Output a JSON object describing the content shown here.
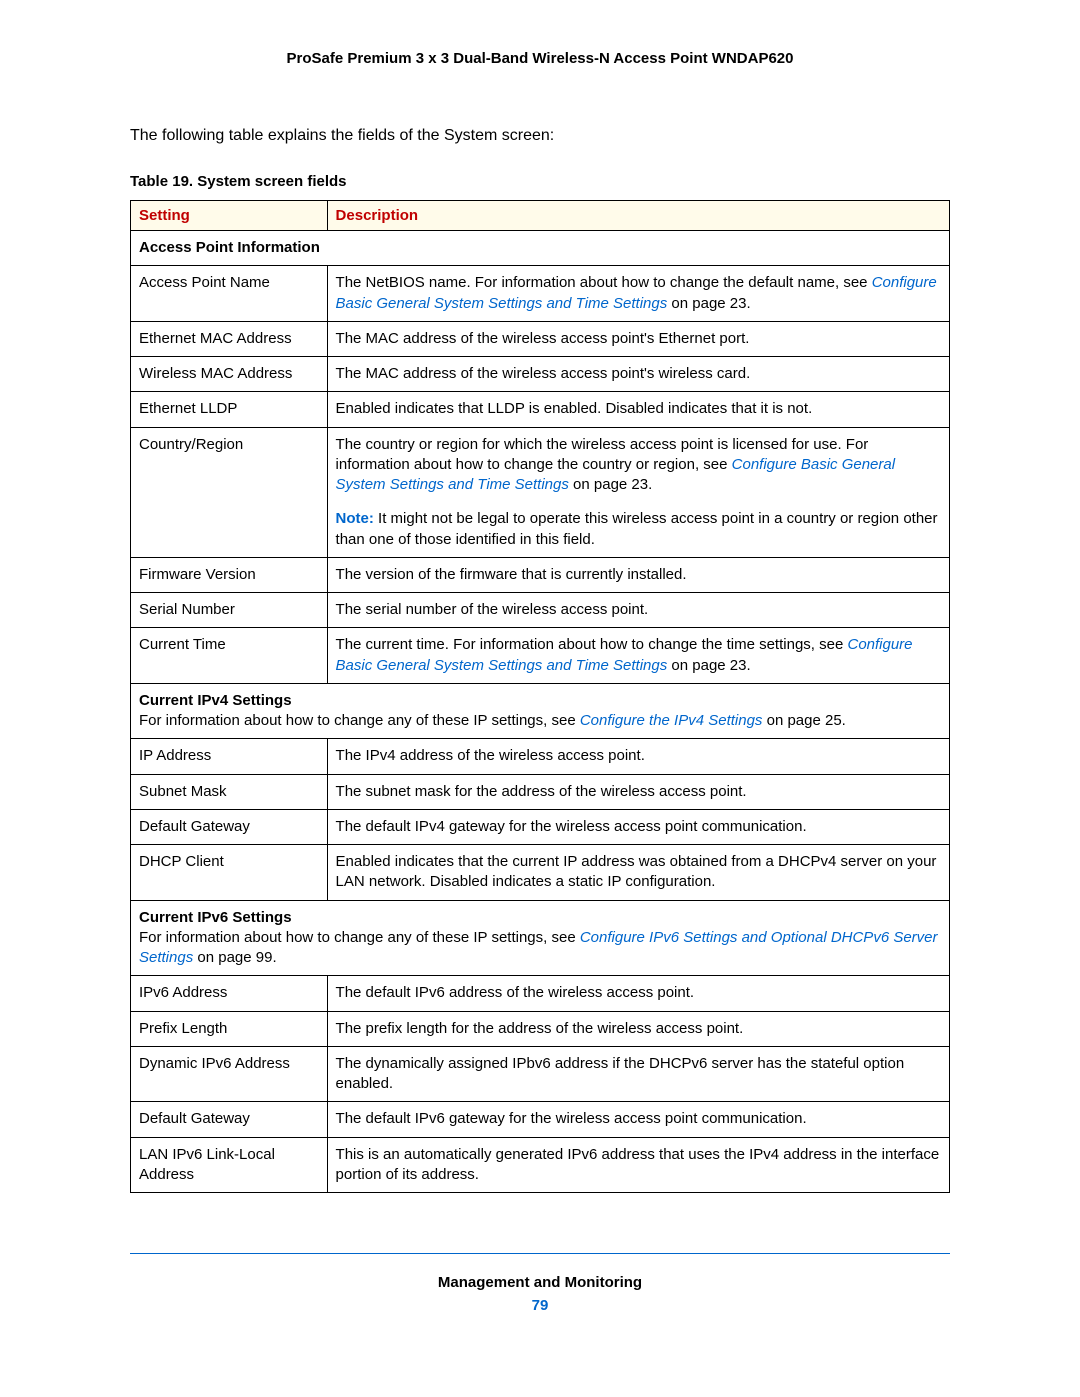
{
  "doc_title": "ProSafe Premium 3 x 3 Dual-Band Wireless-N Access Point WNDAP620",
  "intro": "The following table explains the fields of the System screen:",
  "table_caption": "Table 19.  System screen fields",
  "headers": {
    "setting": "Setting",
    "description": "Description"
  },
  "sections": {
    "api": {
      "title": "Access Point Information",
      "rows": {
        "ap_name": {
          "setting": "Access Point Name",
          "pre": "The NetBIOS name. For information about how to change the default name, see ",
          "link": "Configure Basic General System Settings and Time Settings",
          "post": " on page 23."
        },
        "eth_mac": {
          "setting": "Ethernet MAC Address",
          "desc": "The MAC address of the wireless access point's Ethernet port."
        },
        "wl_mac": {
          "setting": "Wireless MAC Address",
          "desc": "The MAC address of the wireless access point's wireless card."
        },
        "lldp": {
          "setting": "Ethernet LLDP",
          "desc": "Enabled indicates that LLDP is enabled. Disabled indicates that it is not."
        },
        "country": {
          "setting": "Country/Region",
          "pre": "The country or region for which the wireless access point is licensed for use. For information about how to change the country or region, see ",
          "link": "Configure Basic General System Settings and Time Settings",
          "post": " on page 23.",
          "note_label": "Note:",
          "note_text": "  It might not be legal to operate this wireless access point in a country or region other than one of those identified in this field."
        },
        "fw": {
          "setting": "Firmware Version",
          "desc": "The version of the firmware that is currently installed."
        },
        "serial": {
          "setting": "Serial Number",
          "desc": "The serial number of the wireless access point."
        },
        "time": {
          "setting": "Current Time",
          "pre": "The current time. For information about how to change the time settings, see ",
          "link": "Configure Basic General System Settings and Time Settings",
          "post": " on page 23."
        }
      }
    },
    "ipv4": {
      "title": "Current IPv4 Settings",
      "sub_pre": "For information about how to change any of these IP settings, see ",
      "sub_link": "Configure the IPv4 Settings",
      "sub_post": " on page 25.",
      "rows": {
        "ip": {
          "setting": "IP Address",
          "desc": "The IPv4 address of the wireless access point."
        },
        "mask": {
          "setting": "Subnet Mask",
          "desc": "The subnet mask for the address of the wireless access point."
        },
        "gw": {
          "setting": "Default Gateway",
          "desc": "The default IPv4 gateway for the wireless access point communication."
        },
        "dhcp": {
          "setting": "DHCP Client",
          "desc": "Enabled indicates that the current IP address was obtained from a DHCPv4 server on your LAN network. Disabled indicates a static IP configuration."
        }
      }
    },
    "ipv6": {
      "title": "Current IPv6 Settings",
      "sub_pre": "For information about how to change any of these IP settings, see ",
      "sub_link": "Configure IPv6 Settings and Optional DHCPv6 Server Settings",
      "sub_post": " on page 99.",
      "rows": {
        "addr": {
          "setting": "IPv6 Address",
          "desc": "The default IPv6 address of the wireless access point."
        },
        "prefix": {
          "setting": "Prefix Length",
          "desc": "The prefix length for the address of the wireless access point."
        },
        "dyn": {
          "setting": "Dynamic IPv6 Address",
          "desc": "The dynamically assigned IPbv6 address if the DHCPv6 server has the stateful option enabled."
        },
        "gw": {
          "setting": "Default Gateway",
          "desc": "The default IPv6 gateway for the wireless access point communication."
        },
        "ll": {
          "setting": "LAN IPv6 Link-Local Address",
          "desc": "This is an automatically generated IPv6 address that uses the IPv4 address in the interface portion of its address."
        }
      }
    }
  },
  "footer": {
    "section": "Management and Monitoring",
    "page": "79"
  }
}
